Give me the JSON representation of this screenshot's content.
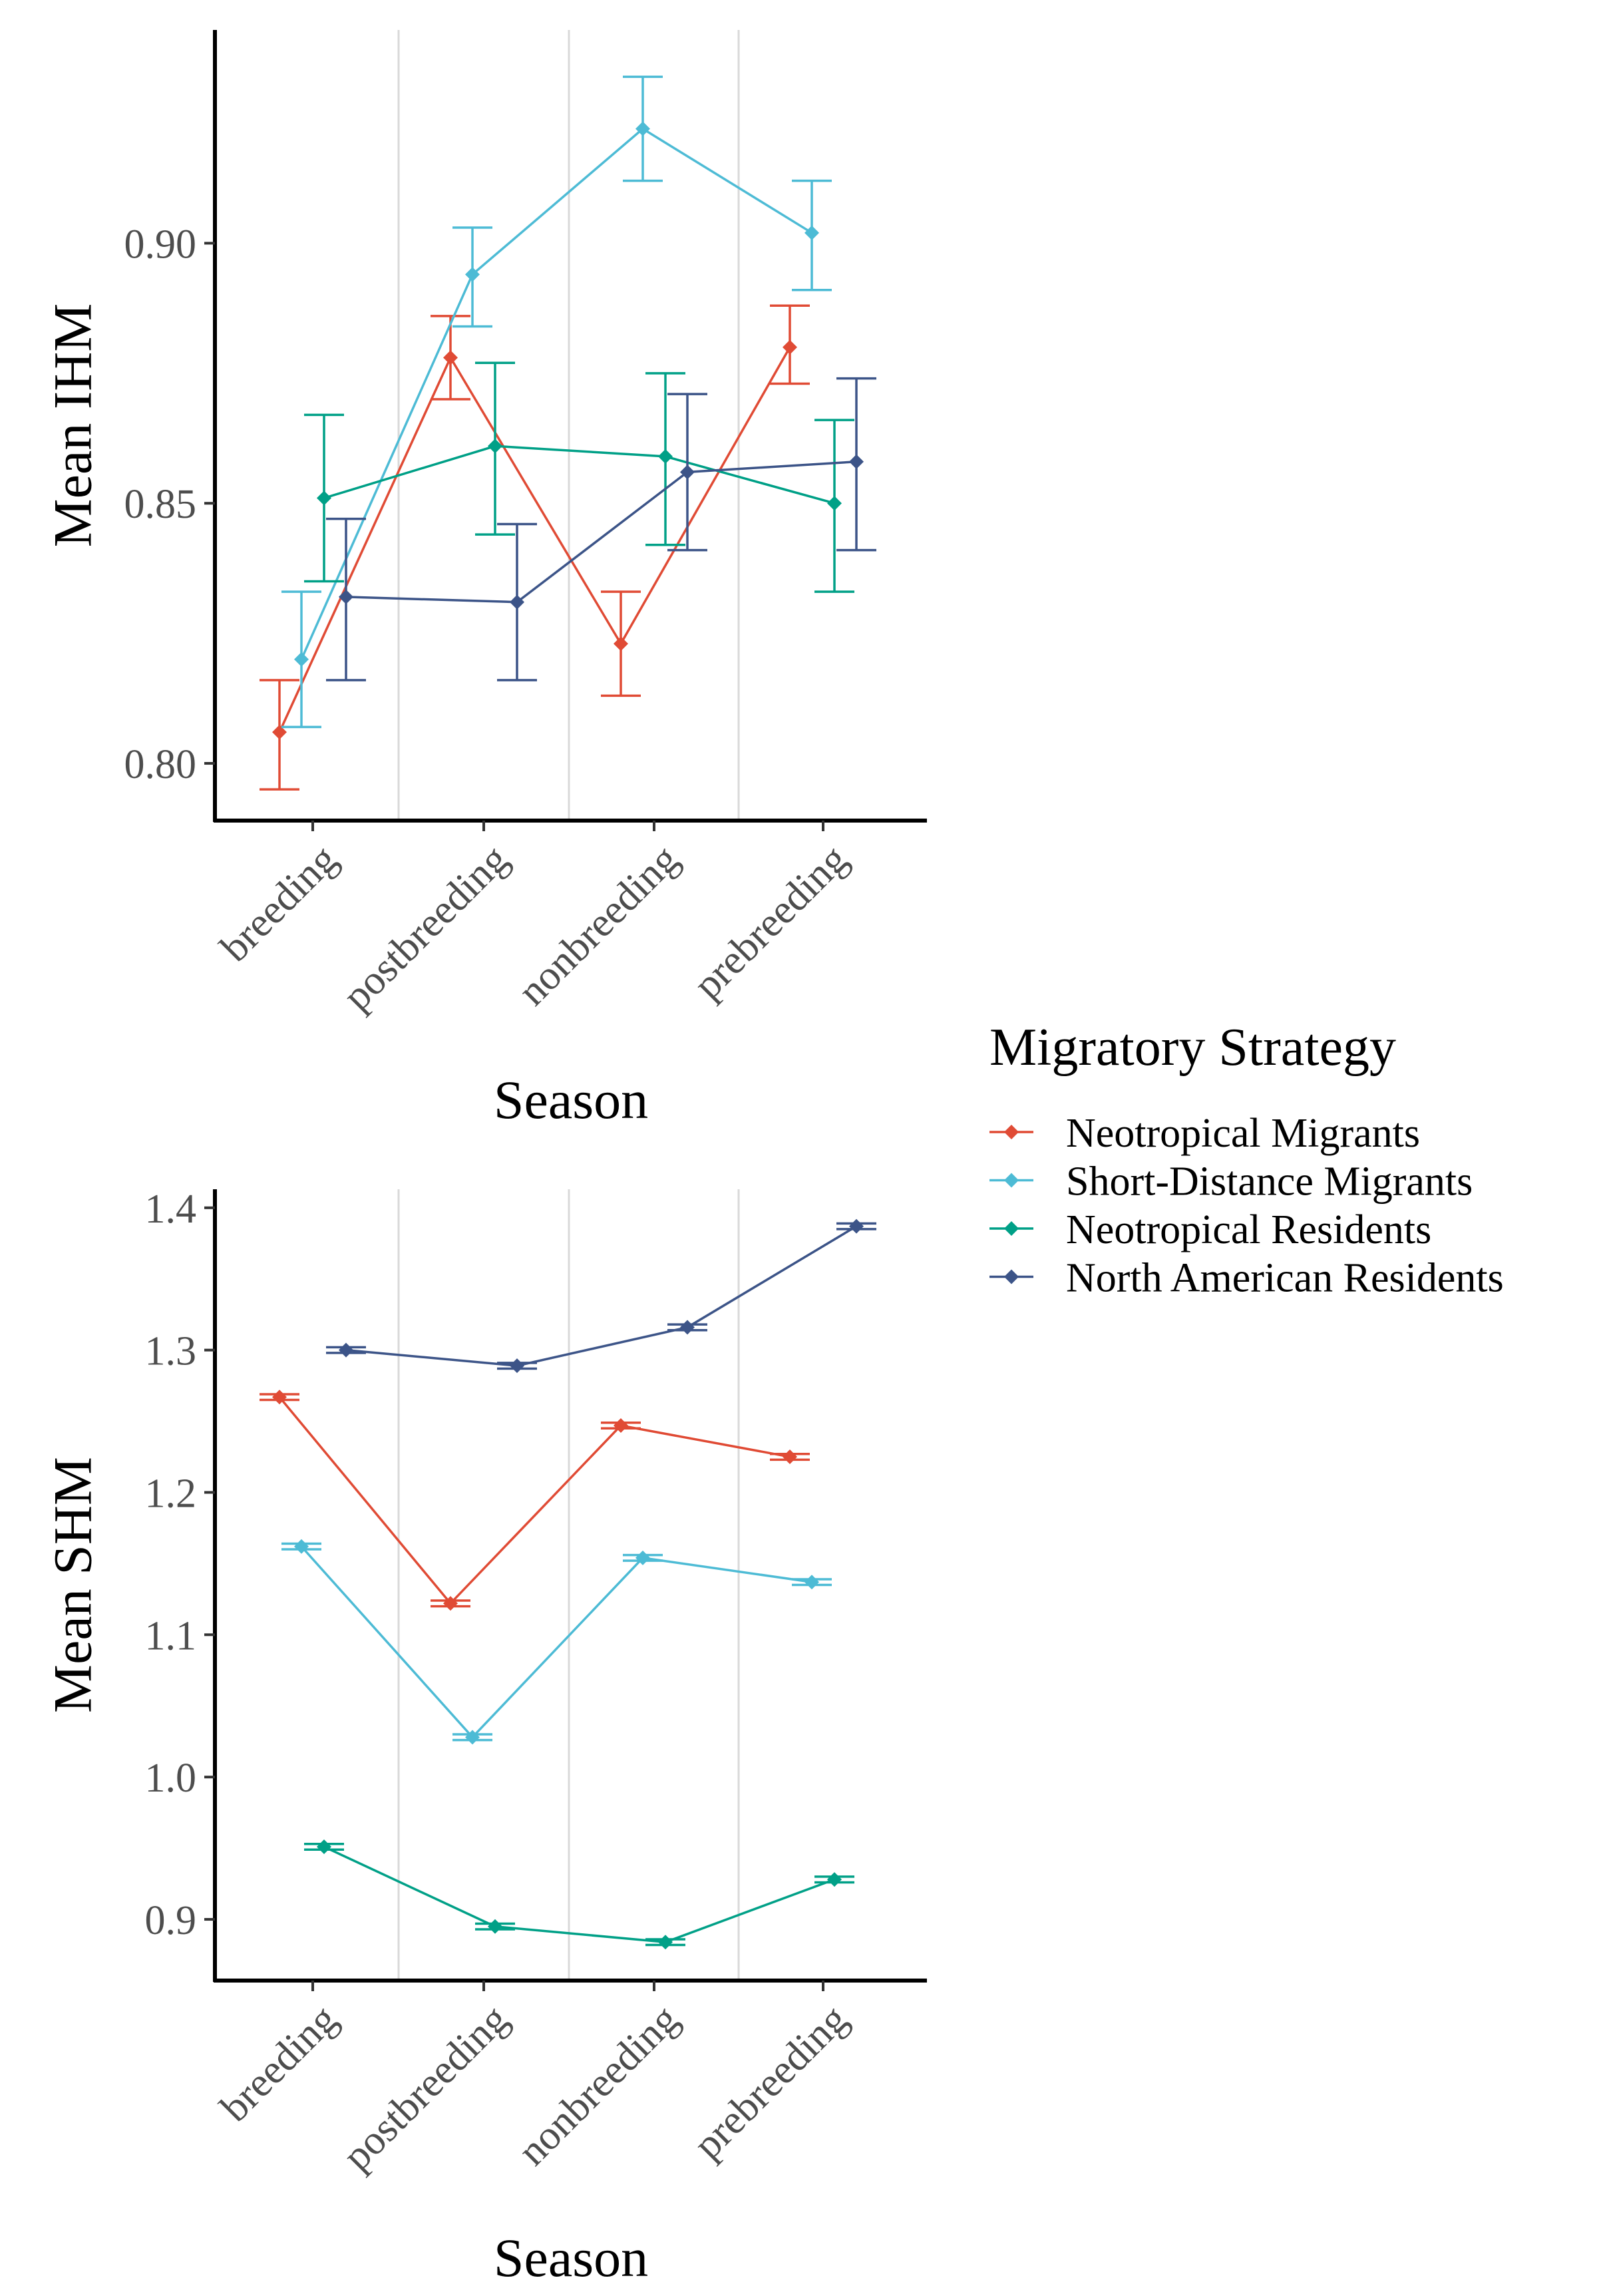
{
  "legend": {
    "title": "Migratory Strategy",
    "placement": "right",
    "entries": [
      {
        "name": "Neotropical Migrants",
        "color": "#E04B35"
      },
      {
        "name": "Short-Distance Migrants",
        "color": "#4DBBD5"
      },
      {
        "name": "Neotropical Residents",
        "color": "#00A087"
      },
      {
        "name": "North American Residents",
        "color": "#3C5488"
      }
    ]
  },
  "chart_data": [
    {
      "type": "line",
      "ylabel": "Mean IHM",
      "xlabel": "Season",
      "categories": [
        "breeding",
        "postbreeding",
        "nonbreeding",
        "prebreeding"
      ],
      "ylim": [
        0.789,
        0.941
      ],
      "yticks": [
        0.8,
        0.85,
        0.9
      ],
      "ytick_labels": [
        "0.80",
        "0.85",
        "0.90"
      ],
      "grid": "vertical separators between categories",
      "error_bars": true,
      "series": [
        {
          "name": "Neotropical Migrants",
          "color": "#E04B35",
          "values": [
            0.806,
            0.878,
            0.823,
            0.88
          ],
          "lower": [
            0.795,
            0.87,
            0.813,
            0.873
          ],
          "upper": [
            0.816,
            0.886,
            0.833,
            0.888
          ]
        },
        {
          "name": "Short-Distance Migrants",
          "color": "#4DBBD5",
          "values": [
            0.82,
            0.894,
            0.922,
            0.902
          ],
          "lower": [
            0.807,
            0.884,
            0.912,
            0.891
          ],
          "upper": [
            0.833,
            0.903,
            0.932,
            0.912
          ]
        },
        {
          "name": "Neotropical Residents",
          "color": "#00A087",
          "values": [
            0.851,
            0.861,
            0.859,
            0.85
          ],
          "lower": [
            0.835,
            0.844,
            0.842,
            0.833
          ],
          "upper": [
            0.867,
            0.877,
            0.875,
            0.866
          ]
        },
        {
          "name": "North American Residents",
          "color": "#3C5488",
          "values": [
            0.832,
            0.831,
            0.856,
            0.858
          ],
          "lower": [
            0.816,
            0.816,
            0.841,
            0.841
          ],
          "upper": [
            0.847,
            0.846,
            0.871,
            0.874
          ]
        }
      ]
    },
    {
      "type": "line",
      "ylabel": "Mean SHM",
      "xlabel": "Season",
      "categories": [
        "breeding",
        "postbreeding",
        "nonbreeding",
        "prebreeding"
      ],
      "ylim": [
        0.857,
        1.413
      ],
      "yticks": [
        0.9,
        1.0,
        1.1,
        1.2,
        1.3,
        1.4
      ],
      "ytick_labels": [
        "0.9",
        "1.0",
        "1.1",
        "1.2",
        "1.3",
        "1.4"
      ],
      "grid": "vertical separators between categories",
      "error_bars": true,
      "series": [
        {
          "name": "Neotropical Migrants",
          "color": "#E04B35",
          "values": [
            1.267,
            1.122,
            1.247,
            1.225
          ],
          "lower": [
            1.265,
            1.12,
            1.245,
            1.223
          ],
          "upper": [
            1.269,
            1.124,
            1.249,
            1.227
          ]
        },
        {
          "name": "Short-Distance Migrants",
          "color": "#4DBBD5",
          "values": [
            1.162,
            1.028,
            1.154,
            1.137
          ],
          "lower": [
            1.16,
            1.026,
            1.152,
            1.135
          ],
          "upper": [
            1.164,
            1.03,
            1.156,
            1.139
          ]
        },
        {
          "name": "Neotropical Residents",
          "color": "#00A087",
          "values": [
            0.951,
            0.895,
            0.884,
            0.928
          ],
          "lower": [
            0.949,
            0.893,
            0.882,
            0.926
          ],
          "upper": [
            0.953,
            0.897,
            0.886,
            0.93
          ]
        },
        {
          "name": "North American Residents",
          "color": "#3C5488",
          "values": [
            1.3,
            1.289,
            1.316,
            1.387
          ],
          "lower": [
            1.298,
            1.287,
            1.314,
            1.385
          ],
          "upper": [
            1.302,
            1.291,
            1.318,
            1.389
          ]
        }
      ]
    }
  ]
}
